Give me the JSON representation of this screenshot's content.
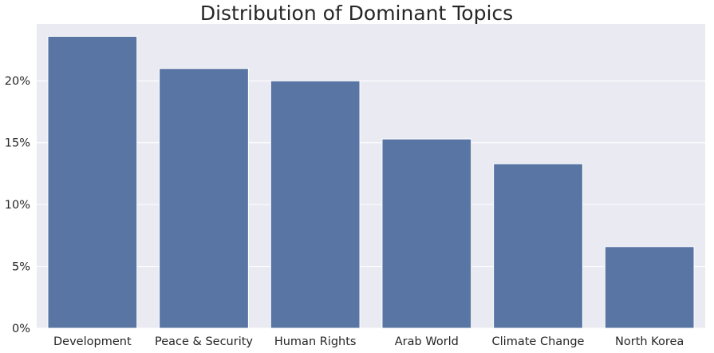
{
  "chart_data": {
    "type": "bar",
    "title": "Distribution of Dominant Topics",
    "xlabel": "",
    "ylabel": "",
    "categories": [
      "Development",
      "Peace & Security",
      "Human Rights",
      "Arab World",
      "Climate Change",
      "North Korea"
    ],
    "values": [
      23.6,
      21.0,
      20.0,
      15.3,
      13.3,
      6.6
    ],
    "ylim": [
      0,
      24.6
    ],
    "yticks": [
      0,
      5,
      10,
      15,
      20
    ],
    "ytick_labels": [
      "0%",
      "5%",
      "10%",
      "15%",
      "20%"
    ],
    "grid": true,
    "legend": "none",
    "colors": {
      "bar": "#5975a4",
      "plot_background": "#eaeaf2",
      "grid": "#ffffff",
      "text": "#262626"
    }
  }
}
